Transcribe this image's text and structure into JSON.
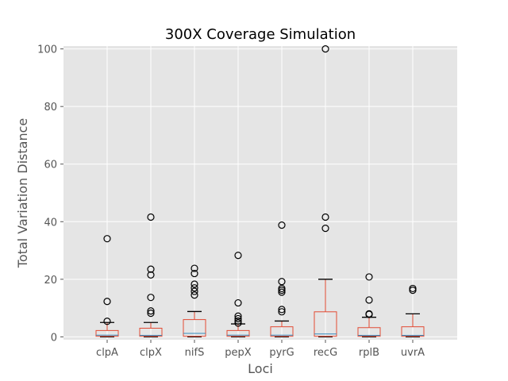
{
  "chart_data": {
    "type": "boxplot",
    "title": "300X Coverage Simulation",
    "xlabel": "Loci",
    "ylabel": "Total Variation Distance",
    "ylim": [
      -1,
      101
    ],
    "yticks": [
      0,
      20,
      40,
      60,
      80,
      100
    ],
    "grid": true,
    "colors": {
      "background": "#e5e5e5",
      "grid": "#ffffff",
      "box": "#e24a33",
      "median": "#348abd",
      "whisker": "#e24a33",
      "cap": "#000000",
      "flier": "#000000"
    },
    "categories": [
      "clpA",
      "clpX",
      "nifS",
      "pepX",
      "pyrG",
      "recG",
      "rplB",
      "uvrA"
    ],
    "boxes": [
      {
        "category": "clpA",
        "whislo": 0,
        "q1": 0.2,
        "median": 0.6,
        "q3": 2.2,
        "whishi": 5.0,
        "fliers": [
          5.4,
          12.3,
          34.1
        ]
      },
      {
        "category": "clpX",
        "whislo": 0,
        "q1": 0.2,
        "median": 0.5,
        "q3": 3.0,
        "whishi": 5.0,
        "fliers": [
          8.2,
          9.0,
          13.7,
          21.5,
          23.5,
          41.6
        ]
      },
      {
        "category": "nifS",
        "whislo": 0,
        "q1": 0.2,
        "median": 1.2,
        "q3": 6.0,
        "whishi": 8.8,
        "fliers": [
          14.5,
          15.8,
          17.0,
          18.3,
          22.0,
          23.8
        ]
      },
      {
        "category": "pepX",
        "whislo": 0,
        "q1": 0.2,
        "median": 0.6,
        "q3": 2.2,
        "whishi": 4.5,
        "fliers": [
          4.8,
          5.5,
          6.3,
          7.2,
          11.8,
          28.3
        ]
      },
      {
        "category": "pyrG",
        "whislo": 0,
        "q1": 0.2,
        "median": 0.6,
        "q3": 3.5,
        "whishi": 5.5,
        "fliers": [
          8.7,
          9.5,
          15.5,
          16.2,
          16.8,
          19.2,
          38.8
        ]
      },
      {
        "category": "recG",
        "whislo": 0,
        "q1": 0.2,
        "median": 1.0,
        "q3": 8.7,
        "whishi": 20.0,
        "fliers": [
          37.7,
          41.6,
          100.0
        ]
      },
      {
        "category": "rplB",
        "whislo": 0,
        "q1": 0.2,
        "median": 0.5,
        "q3": 3.2,
        "whishi": 6.8,
        "fliers": [
          7.8,
          8.0,
          12.8,
          20.8
        ]
      },
      {
        "category": "uvrA",
        "whislo": 0,
        "q1": 0.2,
        "median": 0.5,
        "q3": 3.5,
        "whishi": 8.0,
        "fliers": [
          16.2,
          16.8
        ]
      }
    ]
  }
}
